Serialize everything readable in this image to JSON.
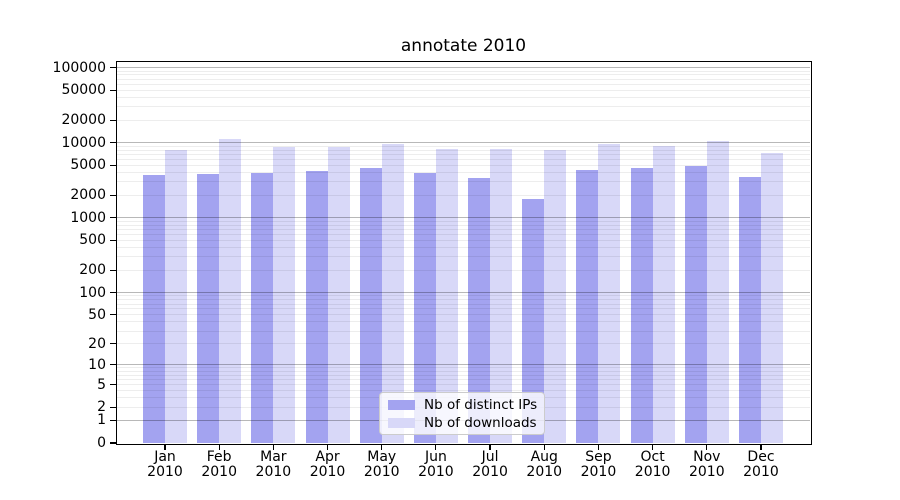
{
  "chart_data": {
    "type": "bar",
    "title": "annotate 2010",
    "categories": [
      "Jan 2010",
      "Feb 2010",
      "Mar 2010",
      "Apr 2010",
      "May 2010",
      "Jun 2010",
      "Jul 2010",
      "Aug 2010",
      "Sep 2010",
      "Oct 2010",
      "Nov 2010",
      "Dec 2010"
    ],
    "series": [
      {
        "name": "Nb of distinct IPs",
        "color": "#a3a3f0",
        "values": [
          3700,
          3850,
          3950,
          4250,
          4600,
          3950,
          3380,
          1780,
          4280,
          4600,
          4850,
          3550
        ]
      },
      {
        "name": "Nb of downloads",
        "color": "#d8d8f8",
        "values": [
          8000,
          11200,
          8650,
          8700,
          9600,
          8200,
          8300,
          8100,
          9700,
          9100,
          10600,
          7200
        ]
      }
    ],
    "y_scale": "log1p",
    "ylim": [
      0,
      100000
    ],
    "y_ticks": [
      0,
      1,
      2,
      5,
      10,
      20,
      50,
      100,
      200,
      500,
      1000,
      2000,
      5000,
      10000,
      20000,
      50000,
      100000
    ],
    "grid": true,
    "legend_position": "lower center"
  },
  "colors": {
    "background": "#ffffff",
    "spine": "#000000",
    "grid_major": "rgba(0,0,0,0.28)",
    "grid_minor": "rgba(0,0,0,0.07)",
    "text": "#000000",
    "legend_bg": "rgba(255,255,255,0.8)",
    "legend_border": "#cccccc"
  }
}
